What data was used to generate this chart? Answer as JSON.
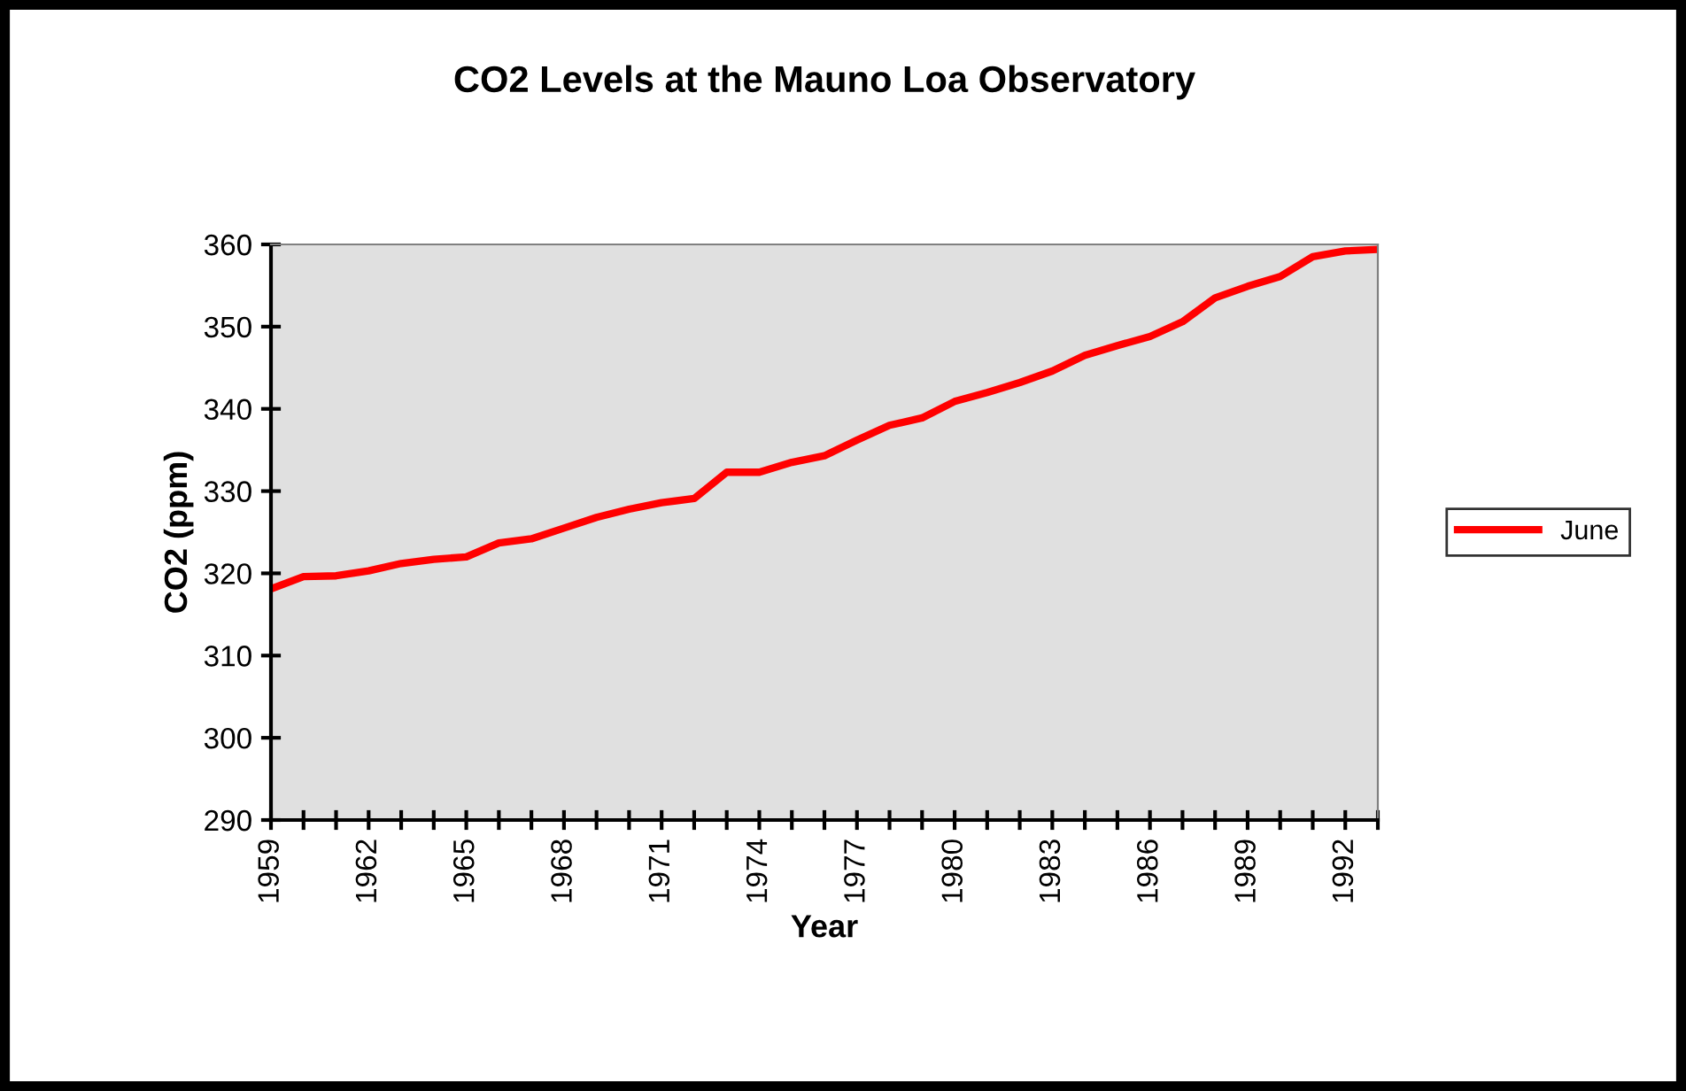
{
  "chart_data": {
    "type": "line",
    "title": "CO2 Levels at the Mauno Loa Observatory",
    "xlabel": "Year",
    "ylabel": "CO2 (ppm)",
    "x": [
      1959,
      1960,
      1961,
      1962,
      1963,
      1964,
      1965,
      1966,
      1967,
      1968,
      1969,
      1970,
      1971,
      1972,
      1973,
      1974,
      1975,
      1976,
      1977,
      1978,
      1979,
      1980,
      1981,
      1982,
      1983,
      1984,
      1985,
      1986,
      1987,
      1988,
      1989,
      1990,
      1991,
      1992,
      1993
    ],
    "series": [
      {
        "name": "June",
        "color": "#ff0000",
        "values": [
          318.1,
          319.6,
          319.7,
          320.3,
          321.2,
          321.7,
          322.0,
          323.7,
          324.2,
          325.5,
          326.8,
          327.8,
          328.6,
          329.1,
          332.3,
          332.3,
          333.5,
          334.3,
          336.2,
          338.0,
          338.9,
          340.9,
          342.0,
          343.2,
          344.6,
          346.5,
          347.7,
          348.8,
          350.6,
          353.5,
          354.9,
          356.1,
          358.5,
          359.2,
          359.4
        ]
      }
    ],
    "xlim": [
      1959,
      1993
    ],
    "xticks": [
      1959,
      {
        "value": 1960,
        "label": null
      },
      {
        "value": 1961,
        "label": null
      },
      1962,
      {
        "value": 1963,
        "label": null
      },
      {
        "value": 1964,
        "label": null
      },
      1965,
      {
        "value": 1966,
        "label": null
      },
      {
        "value": 1967,
        "label": null
      },
      1968,
      {
        "value": 1969,
        "label": null
      },
      {
        "value": 1970,
        "label": null
      },
      1971,
      {
        "value": 1972,
        "label": null
      },
      {
        "value": 1973,
        "label": null
      },
      1974,
      {
        "value": 1975,
        "label": null
      },
      {
        "value": 1976,
        "label": null
      },
      1977,
      {
        "value": 1978,
        "label": null
      },
      {
        "value": 1979,
        "label": null
      },
      1980,
      {
        "value": 1981,
        "label": null
      },
      {
        "value": 1982,
        "label": null
      },
      1983,
      {
        "value": 1984,
        "label": null
      },
      {
        "value": 1985,
        "label": null
      },
      1986,
      {
        "value": 1987,
        "label": null
      },
      {
        "value": 1988,
        "label": null
      },
      1989,
      {
        "value": 1990,
        "label": null
      },
      {
        "value": 1991,
        "label": null
      },
      1992,
      {
        "value": 1993,
        "label": null
      }
    ],
    "ylim": [
      290,
      360
    ],
    "yticks": [
      290,
      300,
      310,
      320,
      330,
      340,
      350,
      360
    ],
    "grid": false,
    "legend": "right",
    "marker": "none",
    "line_style": "solid"
  }
}
